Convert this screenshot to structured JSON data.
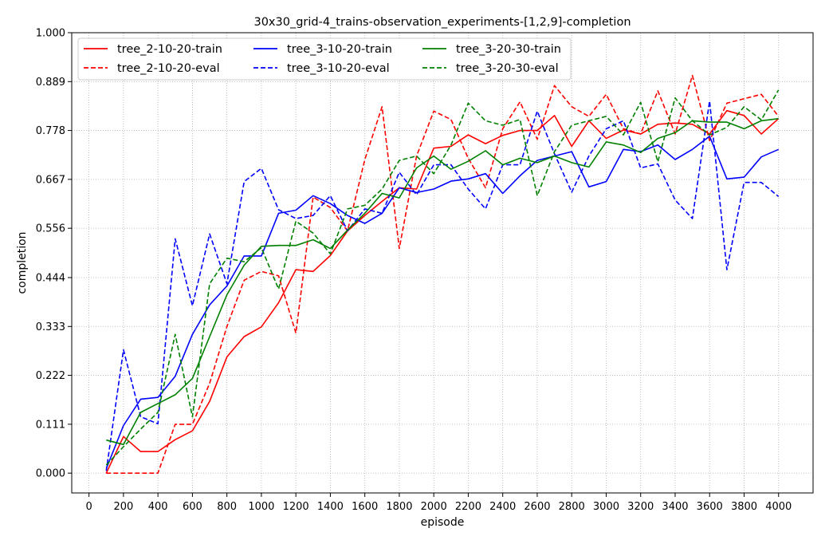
{
  "chart_data": {
    "type": "line",
    "title": "30x30_grid-4_trains-observation_experiments-[1,2,9]-completion",
    "xlabel": "episode",
    "ylabel": "completion",
    "xlim": [
      -100,
      4200
    ],
    "ylim": [
      -0.045,
      1.0
    ],
    "xticks": [
      0,
      200,
      400,
      600,
      800,
      1000,
      1200,
      1400,
      1600,
      1800,
      2000,
      2200,
      2400,
      2600,
      2800,
      3000,
      3200,
      3400,
      3600,
      3800,
      4000
    ],
    "yticks": [
      0.0,
      0.111,
      0.222,
      0.333,
      0.444,
      0.556,
      0.667,
      0.778,
      0.889,
      1.0
    ],
    "ytick_labels": [
      "0.000",
      "0.111",
      "0.222",
      "0.333",
      "0.444",
      "0.556",
      "0.667",
      "0.778",
      "0.889",
      "1.000"
    ],
    "grid": true,
    "legend_position": "top-left",
    "legend_columns": 3,
    "x": [
      100,
      200,
      300,
      400,
      500,
      600,
      700,
      800,
      900,
      1000,
      1100,
      1200,
      1300,
      1400,
      1500,
      1600,
      1700,
      1800,
      1900,
      2000,
      2100,
      2200,
      2300,
      2400,
      2500,
      2600,
      2700,
      2800,
      2900,
      3000,
      3100,
      3200,
      3300,
      3400,
      3500,
      3600,
      3700,
      3800,
      3900,
      4000
    ],
    "series": [
      {
        "name": "tree_2-10-20-train",
        "color": "#ff0000",
        "dash": "solid",
        "values": [
          0.0,
          0.083,
          0.049,
          0.049,
          0.076,
          0.096,
          0.163,
          0.264,
          0.31,
          0.332,
          0.387,
          0.462,
          0.458,
          0.494,
          0.55,
          0.585,
          0.617,
          0.648,
          0.645,
          0.738,
          0.742,
          0.768,
          0.748,
          0.767,
          0.778,
          0.778,
          0.812,
          0.742,
          0.8,
          0.76,
          0.779,
          0.77,
          0.792,
          0.795,
          0.792,
          0.77,
          0.823,
          0.812,
          0.77,
          0.805
        ]
      },
      {
        "name": "tree_2-10-20-eval",
        "color": "#ff0000",
        "dash": "dashed",
        "values": [
          0.0,
          0.0,
          0.0,
          0.0,
          0.111,
          0.111,
          0.204,
          0.333,
          0.438,
          0.458,
          0.448,
          0.318,
          0.627,
          0.603,
          0.55,
          0.712,
          0.832,
          0.51,
          0.72,
          0.822,
          0.803,
          0.715,
          0.648,
          0.782,
          0.843,
          0.758,
          0.88,
          0.832,
          0.81,
          0.86,
          0.782,
          0.77,
          0.868,
          0.77,
          0.903,
          0.755,
          0.84,
          0.85,
          0.86,
          0.81
        ]
      },
      {
        "name": "tree_3-10-20-train",
        "color": "#0000ff",
        "dash": "solid",
        "values": [
          0.01,
          0.108,
          0.168,
          0.172,
          0.22,
          0.315,
          0.382,
          0.425,
          0.493,
          0.493,
          0.59,
          0.597,
          0.63,
          0.612,
          0.585,
          0.567,
          0.59,
          0.648,
          0.637,
          0.645,
          0.663,
          0.668,
          0.68,
          0.635,
          0.675,
          0.71,
          0.72,
          0.73,
          0.65,
          0.662,
          0.735,
          0.73,
          0.745,
          0.712,
          0.735,
          0.765,
          0.668,
          0.672,
          0.718,
          0.735
        ]
      },
      {
        "name": "tree_3-10-20-eval",
        "color": "#0000ff",
        "dash": "dashed",
        "values": [
          0.005,
          0.28,
          0.128,
          0.112,
          0.532,
          0.38,
          0.543,
          0.43,
          0.662,
          0.692,
          0.598,
          0.578,
          0.585,
          0.63,
          0.55,
          0.6,
          0.59,
          0.683,
          0.632,
          0.7,
          0.7,
          0.645,
          0.6,
          0.7,
          0.7,
          0.822,
          0.725,
          0.638,
          0.72,
          0.782,
          0.8,
          0.693,
          0.702,
          0.62,
          0.578,
          0.845,
          0.462,
          0.66,
          0.66,
          0.628
        ]
      },
      {
        "name": "tree_3-20-30-train",
        "color": "#008000",
        "dash": "solid",
        "values": [
          0.075,
          0.065,
          0.138,
          0.158,
          0.178,
          0.215,
          0.31,
          0.405,
          0.472,
          0.515,
          0.517,
          0.517,
          0.53,
          0.51,
          0.552,
          0.59,
          0.635,
          0.625,
          0.693,
          0.72,
          0.69,
          0.708,
          0.732,
          0.7,
          0.715,
          0.705,
          0.72,
          0.705,
          0.695,
          0.752,
          0.745,
          0.728,
          0.76,
          0.773,
          0.8,
          0.797,
          0.797,
          0.782,
          0.8,
          0.805
        ]
      },
      {
        "name": "tree_3-20-30-eval",
        "color": "#008000",
        "dash": "dashed",
        "values": [
          0.018,
          0.06,
          0.1,
          0.138,
          0.315,
          0.128,
          0.43,
          0.488,
          0.48,
          0.512,
          0.418,
          0.572,
          0.545,
          0.498,
          0.6,
          0.608,
          0.645,
          0.71,
          0.72,
          0.68,
          0.745,
          0.84,
          0.8,
          0.79,
          0.803,
          0.63,
          0.73,
          0.79,
          0.8,
          0.81,
          0.768,
          0.842,
          0.707,
          0.852,
          0.8,
          0.768,
          0.785,
          0.832,
          0.802,
          0.87
        ]
      }
    ]
  }
}
